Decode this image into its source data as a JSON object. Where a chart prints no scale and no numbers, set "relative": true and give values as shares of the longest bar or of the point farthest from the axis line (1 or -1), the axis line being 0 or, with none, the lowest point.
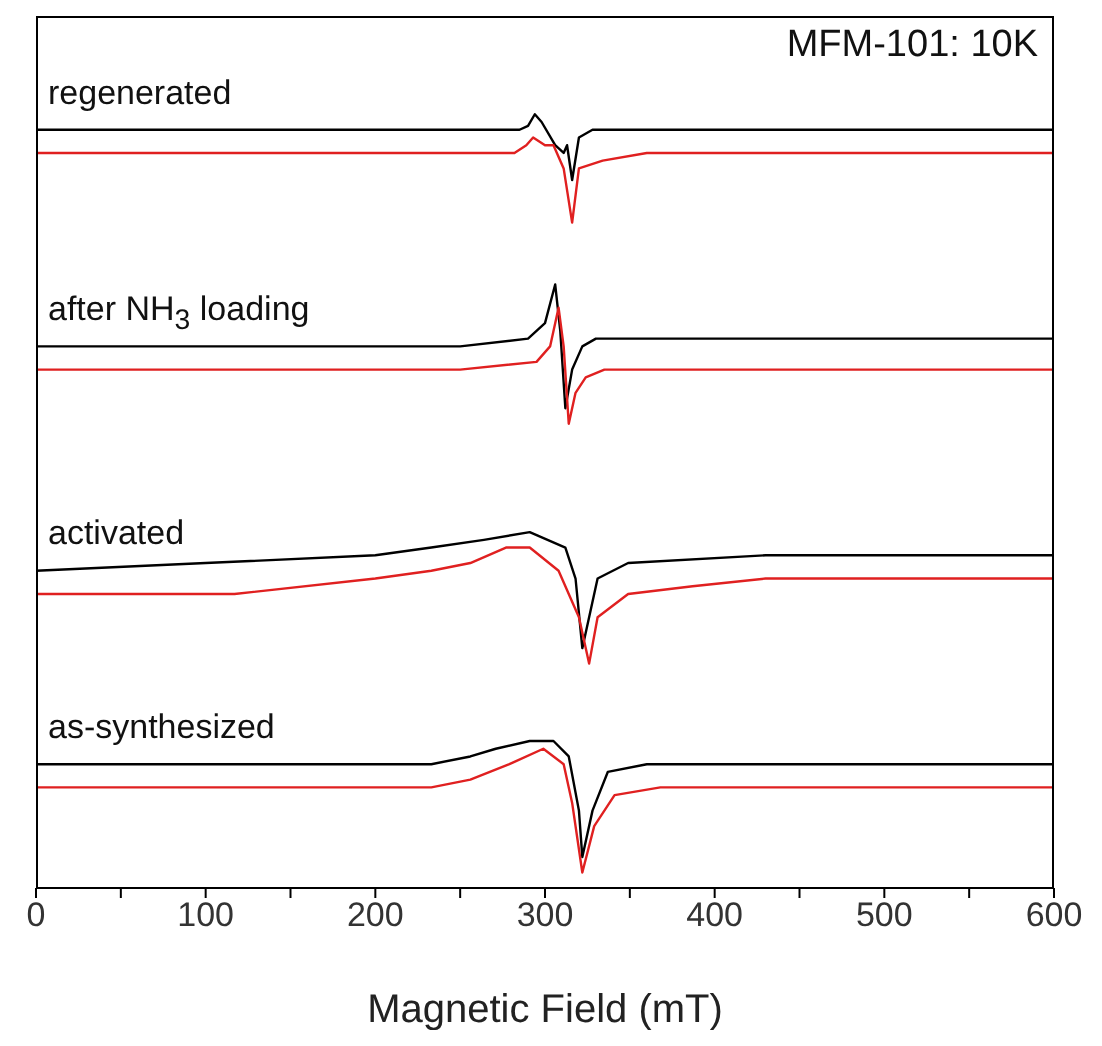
{
  "chart_data": {
    "type": "line",
    "title": "MFM-101: 10K",
    "xlabel": "Magnetic Field (mT)",
    "relative": true,
    "xlim": [
      0,
      600
    ],
    "xticks": [
      0,
      {
        "value": 50,
        "label": null
      },
      100,
      {
        "value": 150,
        "label": null
      },
      200,
      {
        "value": 250,
        "label": null
      },
      300,
      {
        "value": 350,
        "label": null
      },
      400,
      {
        "value": 450,
        "label": null
      },
      500,
      {
        "value": 550,
        "label": null
      },
      600
    ],
    "annotations": [
      "regenerated",
      "after NH$_{3}$ loading",
      "activated",
      "as-synthesized"
    ],
    "marker": "none",
    "line_style": "solid",
    "tick_labels": "x",
    "series": [
      {
        "color": "#000000",
        "x": [
          0,
          250,
          285,
          290,
          294,
          298,
          306,
          311,
          313,
          316,
          320,
          328,
          341,
          600
        ],
        "values": [
          0.98,
          0.98,
          0.98,
          0.985,
          1.0,
          0.99,
          0.96,
          0.95,
          0.96,
          0.915,
          0.97,
          0.98,
          0.98,
          0.98
        ]
      },
      {
        "color": "#e02020",
        "x": [
          0,
          250,
          282,
          289,
          293,
          300,
          305,
          311,
          316,
          320,
          334,
          360,
          600
        ],
        "values": [
          0.95,
          0.95,
          0.95,
          0.96,
          0.97,
          0.96,
          0.96,
          0.93,
          0.86,
          0.93,
          0.94,
          0.95,
          0.95
        ]
      },
      {
        "color": "#000000",
        "x": [
          0,
          250,
          290,
          300,
          306,
          309,
          312,
          316,
          322,
          330,
          600
        ],
        "values": [
          0.7,
          0.7,
          0.71,
          0.73,
          0.78,
          0.72,
          0.62,
          0.67,
          0.7,
          0.71,
          0.71
        ]
      },
      {
        "color": "#e02020",
        "x": [
          0,
          250,
          295,
          303,
          308,
          311,
          314,
          318,
          324,
          335,
          600
        ],
        "values": [
          0.67,
          0.67,
          0.68,
          0.7,
          0.75,
          0.7,
          0.6,
          0.64,
          0.66,
          0.67,
          0.67
        ]
      },
      {
        "color": "#000000",
        "x": [
          0,
          100,
          200,
          233,
          264,
          291,
          312,
          318,
          322,
          326,
          331,
          349,
          430,
          600
        ],
        "values": [
          0.41,
          0.42,
          0.43,
          0.44,
          0.45,
          0.46,
          0.44,
          0.4,
          0.31,
          0.35,
          0.4,
          0.42,
          0.43,
          0.43
        ]
      },
      {
        "color": "#e02020",
        "x": [
          0,
          117,
          200,
          233,
          256,
          277,
          291,
          308,
          320,
          326,
          331,
          349,
          387,
          430,
          600
        ],
        "values": [
          0.38,
          0.38,
          0.4,
          0.41,
          0.42,
          0.44,
          0.44,
          0.41,
          0.35,
          0.29,
          0.35,
          0.38,
          0.39,
          0.4,
          0.4
        ]
      },
      {
        "color": "#000000",
        "x": [
          0,
          233,
          256,
          271,
          291,
          305,
          314,
          320,
          322,
          328,
          337,
          360,
          430,
          600
        ],
        "values": [
          0.16,
          0.16,
          0.17,
          0.18,
          0.19,
          0.19,
          0.17,
          0.1,
          0.04,
          0.1,
          0.15,
          0.16,
          0.16,
          0.16
        ]
      },
      {
        "color": "#e02020",
        "x": [
          0,
          150,
          233,
          256,
          279,
          299,
          311,
          316,
          322,
          329,
          341,
          368,
          430,
          600
        ],
        "values": [
          0.13,
          0.13,
          0.13,
          0.14,
          0.16,
          0.18,
          0.16,
          0.11,
          0.02,
          0.08,
          0.12,
          0.13,
          0.13,
          0.13
        ]
      }
    ]
  }
}
